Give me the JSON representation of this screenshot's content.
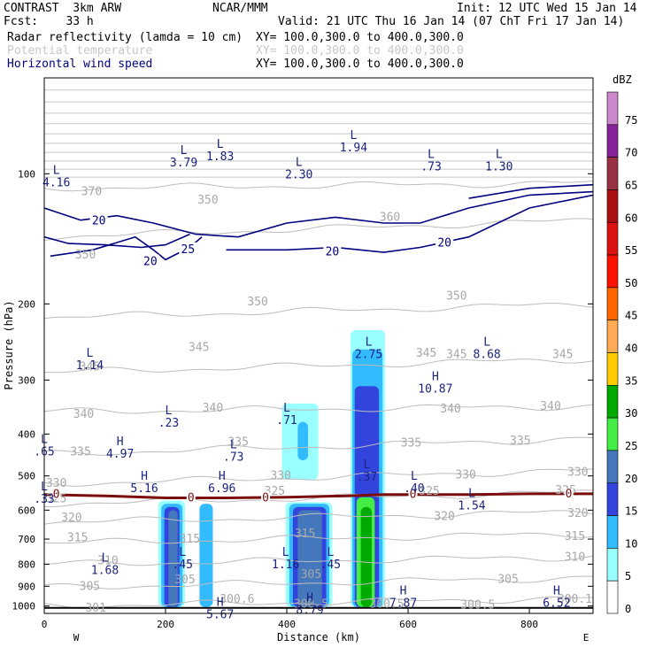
{
  "header": {
    "model": "CONTRAST  3km ARW",
    "org": "NCAR/MMM",
    "init": "Init: 12 UTC Wed 15 Jan 14",
    "fcst": "Fcst:    33 h",
    "valid": "Valid: 21 UTC Thu 16 Jan 14 (07 ChT Fri 17 Jan 14)",
    "fields": [
      {
        "name": "Radar reflectivity (lamda = 10 cm)",
        "xy": "XY= 100.0,300.0 to 400.0,300.0",
        "color": "#000000"
      },
      {
        "name": "Potential temperature",
        "xy": "XY= 100.0,300.0 to 400.0,300.0",
        "color": "#c8c8c8"
      },
      {
        "name": "Horizontal wind speed",
        "xy": "XY= 100.0,300.0 to 400.0,300.0",
        "color": "#000080"
      }
    ]
  },
  "chart_data": {
    "type": "heatmap",
    "xlabel": "Distance (km)",
    "ylabel": "Pressure (hPa)",
    "xlim": [
      0,
      905
    ],
    "ylim": [
      1040,
      60
    ],
    "y_scale": "log",
    "x_ticks": [
      0,
      200,
      400,
      600,
      800
    ],
    "y_ticks": [
      100,
      200,
      300,
      400,
      500,
      600,
      700,
      800,
      900,
      1000
    ],
    "x_end_labels": {
      "left": "W",
      "right": "E"
    },
    "colorbar": {
      "unit": "dBZ",
      "levels": [
        0,
        5,
        10,
        15,
        20,
        25,
        30,
        35,
        40,
        45,
        50,
        55,
        60,
        65,
        70,
        75
      ],
      "colors": [
        "#ffffff",
        "#99ffff",
        "#33bbff",
        "#3344dd",
        "#4477bb",
        "#44ee44",
        "#00aa00",
        "#ffcc00",
        "#ffaa55",
        "#ff6600",
        "#ff1100",
        "#dd1111",
        "#aa1111",
        "#993344",
        "#882299",
        "#cc88cc"
      ]
    },
    "reflectivity_cells": [
      {
        "x1": 188,
        "x2": 232,
        "p_top": 570,
        "p_bot": 1005,
        "level": 5
      },
      {
        "x1": 193,
        "x2": 228,
        "p_top": 580,
        "p_bot": 1005,
        "level": 10
      },
      {
        "x1": 198,
        "x2": 223,
        "p_top": 590,
        "p_bot": 1005,
        "level": 15
      },
      {
        "x1": 205,
        "x2": 220,
        "p_top": 600,
        "p_bot": 1005,
        "level": 20
      },
      {
        "x1": 256,
        "x2": 278,
        "p_top": 580,
        "p_bot": 1005,
        "level": 10
      },
      {
        "x1": 398,
        "x2": 475,
        "p_top": 575,
        "p_bot": 1005,
        "level": 5
      },
      {
        "x1": 404,
        "x2": 470,
        "p_top": 580,
        "p_bot": 1005,
        "level": 10
      },
      {
        "x1": 410,
        "x2": 465,
        "p_top": 590,
        "p_bot": 1005,
        "level": 15
      },
      {
        "x1": 418,
        "x2": 458,
        "p_top": 600,
        "p_bot": 1005,
        "level": 20
      },
      {
        "x1": 505,
        "x2": 562,
        "p_top": 230,
        "p_bot": 1005,
        "level": 5
      },
      {
        "x1": 508,
        "x2": 558,
        "p_top": 255,
        "p_bot": 1005,
        "level": 10
      },
      {
        "x1": 512,
        "x2": 552,
        "p_top": 310,
        "p_bot": 1005,
        "level": 15
      },
      {
        "x1": 515,
        "x2": 545,
        "p_top": 560,
        "p_bot": 1005,
        "level": 25
      },
      {
        "x1": 522,
        "x2": 540,
        "p_top": 590,
        "p_bot": 1005,
        "level": 30
      },
      {
        "x1": 392,
        "x2": 452,
        "p_top": 340,
        "p_bot": 510,
        "level": 5
      },
      {
        "x1": 418,
        "x2": 435,
        "p_top": 375,
        "p_bot": 460,
        "level": 10
      }
    ],
    "theta_contours": [
      {
        "label": "370",
        "p_left": 108,
        "p_right": 105
      },
      {
        "label": "360",
        "p_left": 140,
        "p_right": 128
      },
      {
        "label": "350",
        "p_left": 215,
        "p_right": 200
      },
      {
        "label": "345",
        "p_left": 288,
        "p_right": 268
      },
      {
        "label": "340",
        "p_left": 355,
        "p_right": 345
      },
      {
        "label": "335",
        "p_left": 445,
        "p_right": 410
      },
      {
        "label": "330",
        "p_left": 522,
        "p_right": 485
      },
      {
        "label": "325",
        "p_left": 580,
        "p_right": 545
      },
      {
        "label": "320",
        "p_left": 640,
        "p_right": 605
      },
      {
        "label": "315",
        "p_left": 715,
        "p_right": 680
      },
      {
        "label": "310",
        "p_left": 800,
        "p_right": 770
      },
      {
        "label": "305",
        "p_left": 905,
        "p_right": 860
      },
      {
        "label": "300",
        "p_left": 1000,
        "p_right": 960
      }
    ],
    "theta_labels": [
      {
        "text": "370",
        "x": 78,
        "p": 110
      },
      {
        "text": "350",
        "x": 68,
        "p": 154
      },
      {
        "text": "360",
        "x": 570,
        "p": 126
      },
      {
        "text": "350",
        "x": 270,
        "p": 115
      },
      {
        "text": "350",
        "x": 352,
        "p": 198
      },
      {
        "text": "350",
        "x": 680,
        "p": 192
      },
      {
        "text": "345",
        "x": 75,
        "p": 280
      },
      {
        "text": "345",
        "x": 255,
        "p": 252
      },
      {
        "text": "345",
        "x": 630,
        "p": 260
      },
      {
        "text": "345",
        "x": 680,
        "p": 262
      },
      {
        "text": "345",
        "x": 855,
        "p": 262
      },
      {
        "text": "340",
        "x": 65,
        "p": 360
      },
      {
        "text": "340",
        "x": 278,
        "p": 348
      },
      {
        "text": "340",
        "x": 670,
        "p": 350
      },
      {
        "text": "340",
        "x": 835,
        "p": 345
      },
      {
        "text": "335",
        "x": 60,
        "p": 440
      },
      {
        "text": "335",
        "x": 320,
        "p": 418
      },
      {
        "text": "335",
        "x": 605,
        "p": 420
      },
      {
        "text": "335",
        "x": 785,
        "p": 415
      },
      {
        "text": "330",
        "x": 20,
        "p": 520
      },
      {
        "text": "330",
        "x": 390,
        "p": 500
      },
      {
        "text": "330",
        "x": 695,
        "p": 497
      },
      {
        "text": "330",
        "x": 880,
        "p": 490
      },
      {
        "text": "325",
        "x": 20,
        "p": 565
      },
      {
        "text": "325",
        "x": 380,
        "p": 543
      },
      {
        "text": "325",
        "x": 635,
        "p": 542
      },
      {
        "text": "325",
        "x": 860,
        "p": 540
      },
      {
        "text": "320",
        "x": 45,
        "p": 625
      },
      {
        "text": "320",
        "x": 660,
        "p": 620
      },
      {
        "text": "320",
        "x": 880,
        "p": 610
      },
      {
        "text": "315",
        "x": 55,
        "p": 695
      },
      {
        "text": "315",
        "x": 240,
        "p": 700
      },
      {
        "text": "315",
        "x": 430,
        "p": 680
      },
      {
        "text": "315",
        "x": 875,
        "p": 690
      },
      {
        "text": "310",
        "x": 105,
        "p": 785
      },
      {
        "text": "310",
        "x": 875,
        "p": 770
      },
      {
        "text": "305",
        "x": 75,
        "p": 900
      },
      {
        "text": "305",
        "x": 232,
        "p": 870
      },
      {
        "text": "305",
        "x": 440,
        "p": 845
      },
      {
        "text": "305",
        "x": 765,
        "p": 868
      },
      {
        "text": "300.6",
        "x": 318,
        "p": 965
      },
      {
        "text": "300.5",
        "x": 440,
        "p": 990
      },
      {
        "text": "300.5",
        "x": 565,
        "p": 990
      },
      {
        "text": "300.5",
        "x": 715,
        "p": 995
      },
      {
        "text": "301",
        "x": 85,
        "p": 1010
      },
      {
        "text": "300.1",
        "x": 875,
        "p": 965
      }
    ],
    "temp_zero_line": {
      "label": "0",
      "points": [
        [
          0,
          552
        ],
        [
          100,
          556
        ],
        [
          200,
          562
        ],
        [
          300,
          562
        ],
        [
          400,
          560
        ],
        [
          500,
          556
        ],
        [
          560,
          552
        ],
        [
          700,
          552
        ],
        [
          800,
          550
        ],
        [
          905,
          550
        ]
      ]
    },
    "temp_zero_labels": [
      {
        "x": 20,
        "p": 552
      },
      {
        "x": 242,
        "p": 562
      },
      {
        "x": 365,
        "p": 562
      },
      {
        "x": 608,
        "p": 552
      },
      {
        "x": 865,
        "p": 550
      }
    ],
    "wind_contours": [
      {
        "label": "20",
        "points": [
          [
            0,
            120
          ],
          [
            60,
            128
          ],
          [
            120,
            125
          ],
          [
            180,
            130
          ],
          [
            250,
            138
          ],
          [
            320,
            140
          ],
          [
            400,
            130
          ],
          [
            480,
            126
          ],
          [
            560,
            130
          ],
          [
            620,
            130
          ],
          [
            700,
            120
          ],
          [
            800,
            112
          ],
          [
            905,
            110
          ]
        ]
      },
      {
        "label": "20",
        "points": [
          [
            10,
            155
          ],
          [
            80,
            150
          ],
          [
            150,
            140
          ],
          [
            180,
            150
          ],
          [
            200,
            158
          ],
          [
            240,
            148
          ],
          [
            260,
            140
          ]
        ]
      },
      {
        "label": "25",
        "points": [
          [
            0,
            140
          ],
          [
            40,
            145
          ],
          [
            100,
            146
          ],
          [
            160,
            148
          ],
          [
            200,
            146
          ],
          [
            240,
            138
          ]
        ]
      },
      {
        "label": "20",
        "points": [
          [
            300,
            150
          ],
          [
            400,
            150
          ],
          [
            480,
            148
          ],
          [
            560,
            152
          ],
          [
            620,
            148
          ],
          [
            700,
            140
          ],
          [
            800,
            120
          ],
          [
            905,
            112
          ]
        ]
      },
      {
        "label": "",
        "points": [
          [
            700,
            114
          ],
          [
            800,
            108
          ],
          [
            905,
            106
          ]
        ]
      }
    ],
    "wind_labels": [
      {
        "text": "20",
        "x": 90,
        "p": 128
      },
      {
        "text": "20",
        "x": 175,
        "p": 159
      },
      {
        "text": "25",
        "x": 237,
        "p": 149
      },
      {
        "text": "20",
        "x": 475,
        "p": 151
      },
      {
        "text": "20",
        "x": 660,
        "p": 144
      }
    ],
    "baseline": {
      "p": 1010
    },
    "hl_markers": [
      {
        "t": "L",
        "v": "4.16",
        "x": 20,
        "p": 100
      },
      {
        "t": "L",
        "v": "3.79",
        "x": 230,
        "p": 90
      },
      {
        "t": "L",
        "v": "1.83",
        "x": 290,
        "p": 87
      },
      {
        "t": "L",
        "v": "2.30",
        "x": 420,
        "p": 96
      },
      {
        "t": "L",
        "v": "1.94",
        "x": 510,
        "p": 83
      },
      {
        "t": "L",
        "v": ".73",
        "x": 638,
        "p": 92
      },
      {
        "t": "L",
        "v": "1.30",
        "x": 750,
        "p": 92
      },
      {
        "t": "L",
        "v": "1.14",
        "x": 75,
        "p": 265
      },
      {
        "t": "L",
        "v": "2.75",
        "x": 535,
        "p": 250
      },
      {
        "t": "L",
        "v": "8.68",
        "x": 730,
        "p": 250
      },
      {
        "t": "H",
        "v": "10.87",
        "x": 645,
        "p": 300
      },
      {
        "t": "L",
        "v": ".23",
        "x": 205,
        "p": 360
      },
      {
        "t": "L",
        "v": ".71",
        "x": 400,
        "p": 355
      },
      {
        "t": "L",
        "v": ".65",
        "x": 0,
        "p": 420
      },
      {
        "t": "H",
        "v": "4.97",
        "x": 125,
        "p": 425
      },
      {
        "t": "L",
        "v": ".73",
        "x": 312,
        "p": 432
      },
      {
        "t": "L",
        "v": ".37",
        "x": 532,
        "p": 480
      },
      {
        "t": "H",
        "v": "5.16",
        "x": 165,
        "p": 510
      },
      {
        "t": "H",
        "v": "6.96",
        "x": 293,
        "p": 510
      },
      {
        "t": "L",
        "v": ".40",
        "x": 610,
        "p": 510
      },
      {
        "t": "L",
        "v": ".33",
        "x": 0,
        "p": 540
      },
      {
        "t": "L",
        "v": "1.54",
        "x": 705,
        "p": 560
      },
      {
        "t": "L",
        "v": ".45",
        "x": 228,
        "p": 765
      },
      {
        "t": "L",
        "v": "1.16",
        "x": 398,
        "p": 765
      },
      {
        "t": "L",
        "v": ".45",
        "x": 472,
        "p": 765
      },
      {
        "t": "L",
        "v": "1.68",
        "x": 100,
        "p": 790
      },
      {
        "t": "H",
        "v": "7.87",
        "x": 592,
        "p": 940
      },
      {
        "t": "H",
        "v": "6.52",
        "x": 845,
        "p": 940
      },
      {
        "t": "H",
        "v": "8.79",
        "x": 438,
        "p": 975
      },
      {
        "t": "H",
        "v": "5.67",
        "x": 290,
        "p": 1000
      }
    ]
  }
}
